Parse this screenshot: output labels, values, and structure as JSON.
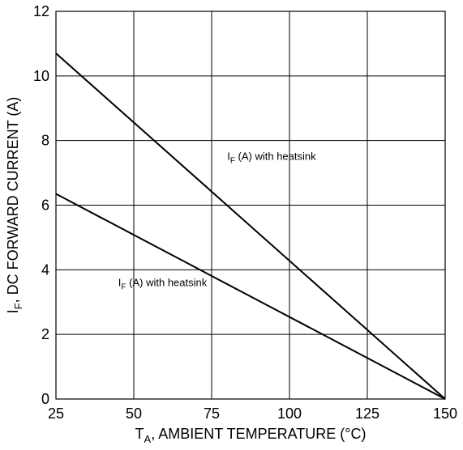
{
  "chart_data": {
    "type": "line",
    "xlabel": "T_A, AMBIENT TEMPERATURE (°C)",
    "xlabel_main": "T",
    "xlabel_sub": "A",
    "xlabel_rest": ", AMBIENT TEMPERATURE (°C)",
    "ylabel": "I_F, DC FORWARD CURRENT (A)",
    "ylabel_main": "I",
    "ylabel_sub": "F",
    "ylabel_rest": ", DC FORWARD CURRENT (A)",
    "xlim": [
      25,
      150
    ],
    "ylim": [
      0,
      12
    ],
    "x_ticks": [
      25,
      50,
      75,
      100,
      125,
      150
    ],
    "y_ticks": [
      0,
      2,
      4,
      6,
      8,
      10,
      12
    ],
    "grid": true,
    "series": [
      {
        "x": [
          25,
          150
        ],
        "y": [
          10.7,
          0
        ]
      },
      {
        "x": [
          25,
          150
        ],
        "y": [
          6.35,
          0
        ]
      }
    ],
    "annotations": [
      {
        "main": "I",
        "sub": "F",
        "rest": " (A) with heatsink",
        "x": 80,
        "y": 7.4
      },
      {
        "main": "I",
        "sub": "F",
        "rest": " (A) with heatsink",
        "x": 45,
        "y": 3.5
      }
    ],
    "colors": {
      "line": "#000000",
      "grid": "#000000",
      "background": "#ffffff"
    }
  }
}
